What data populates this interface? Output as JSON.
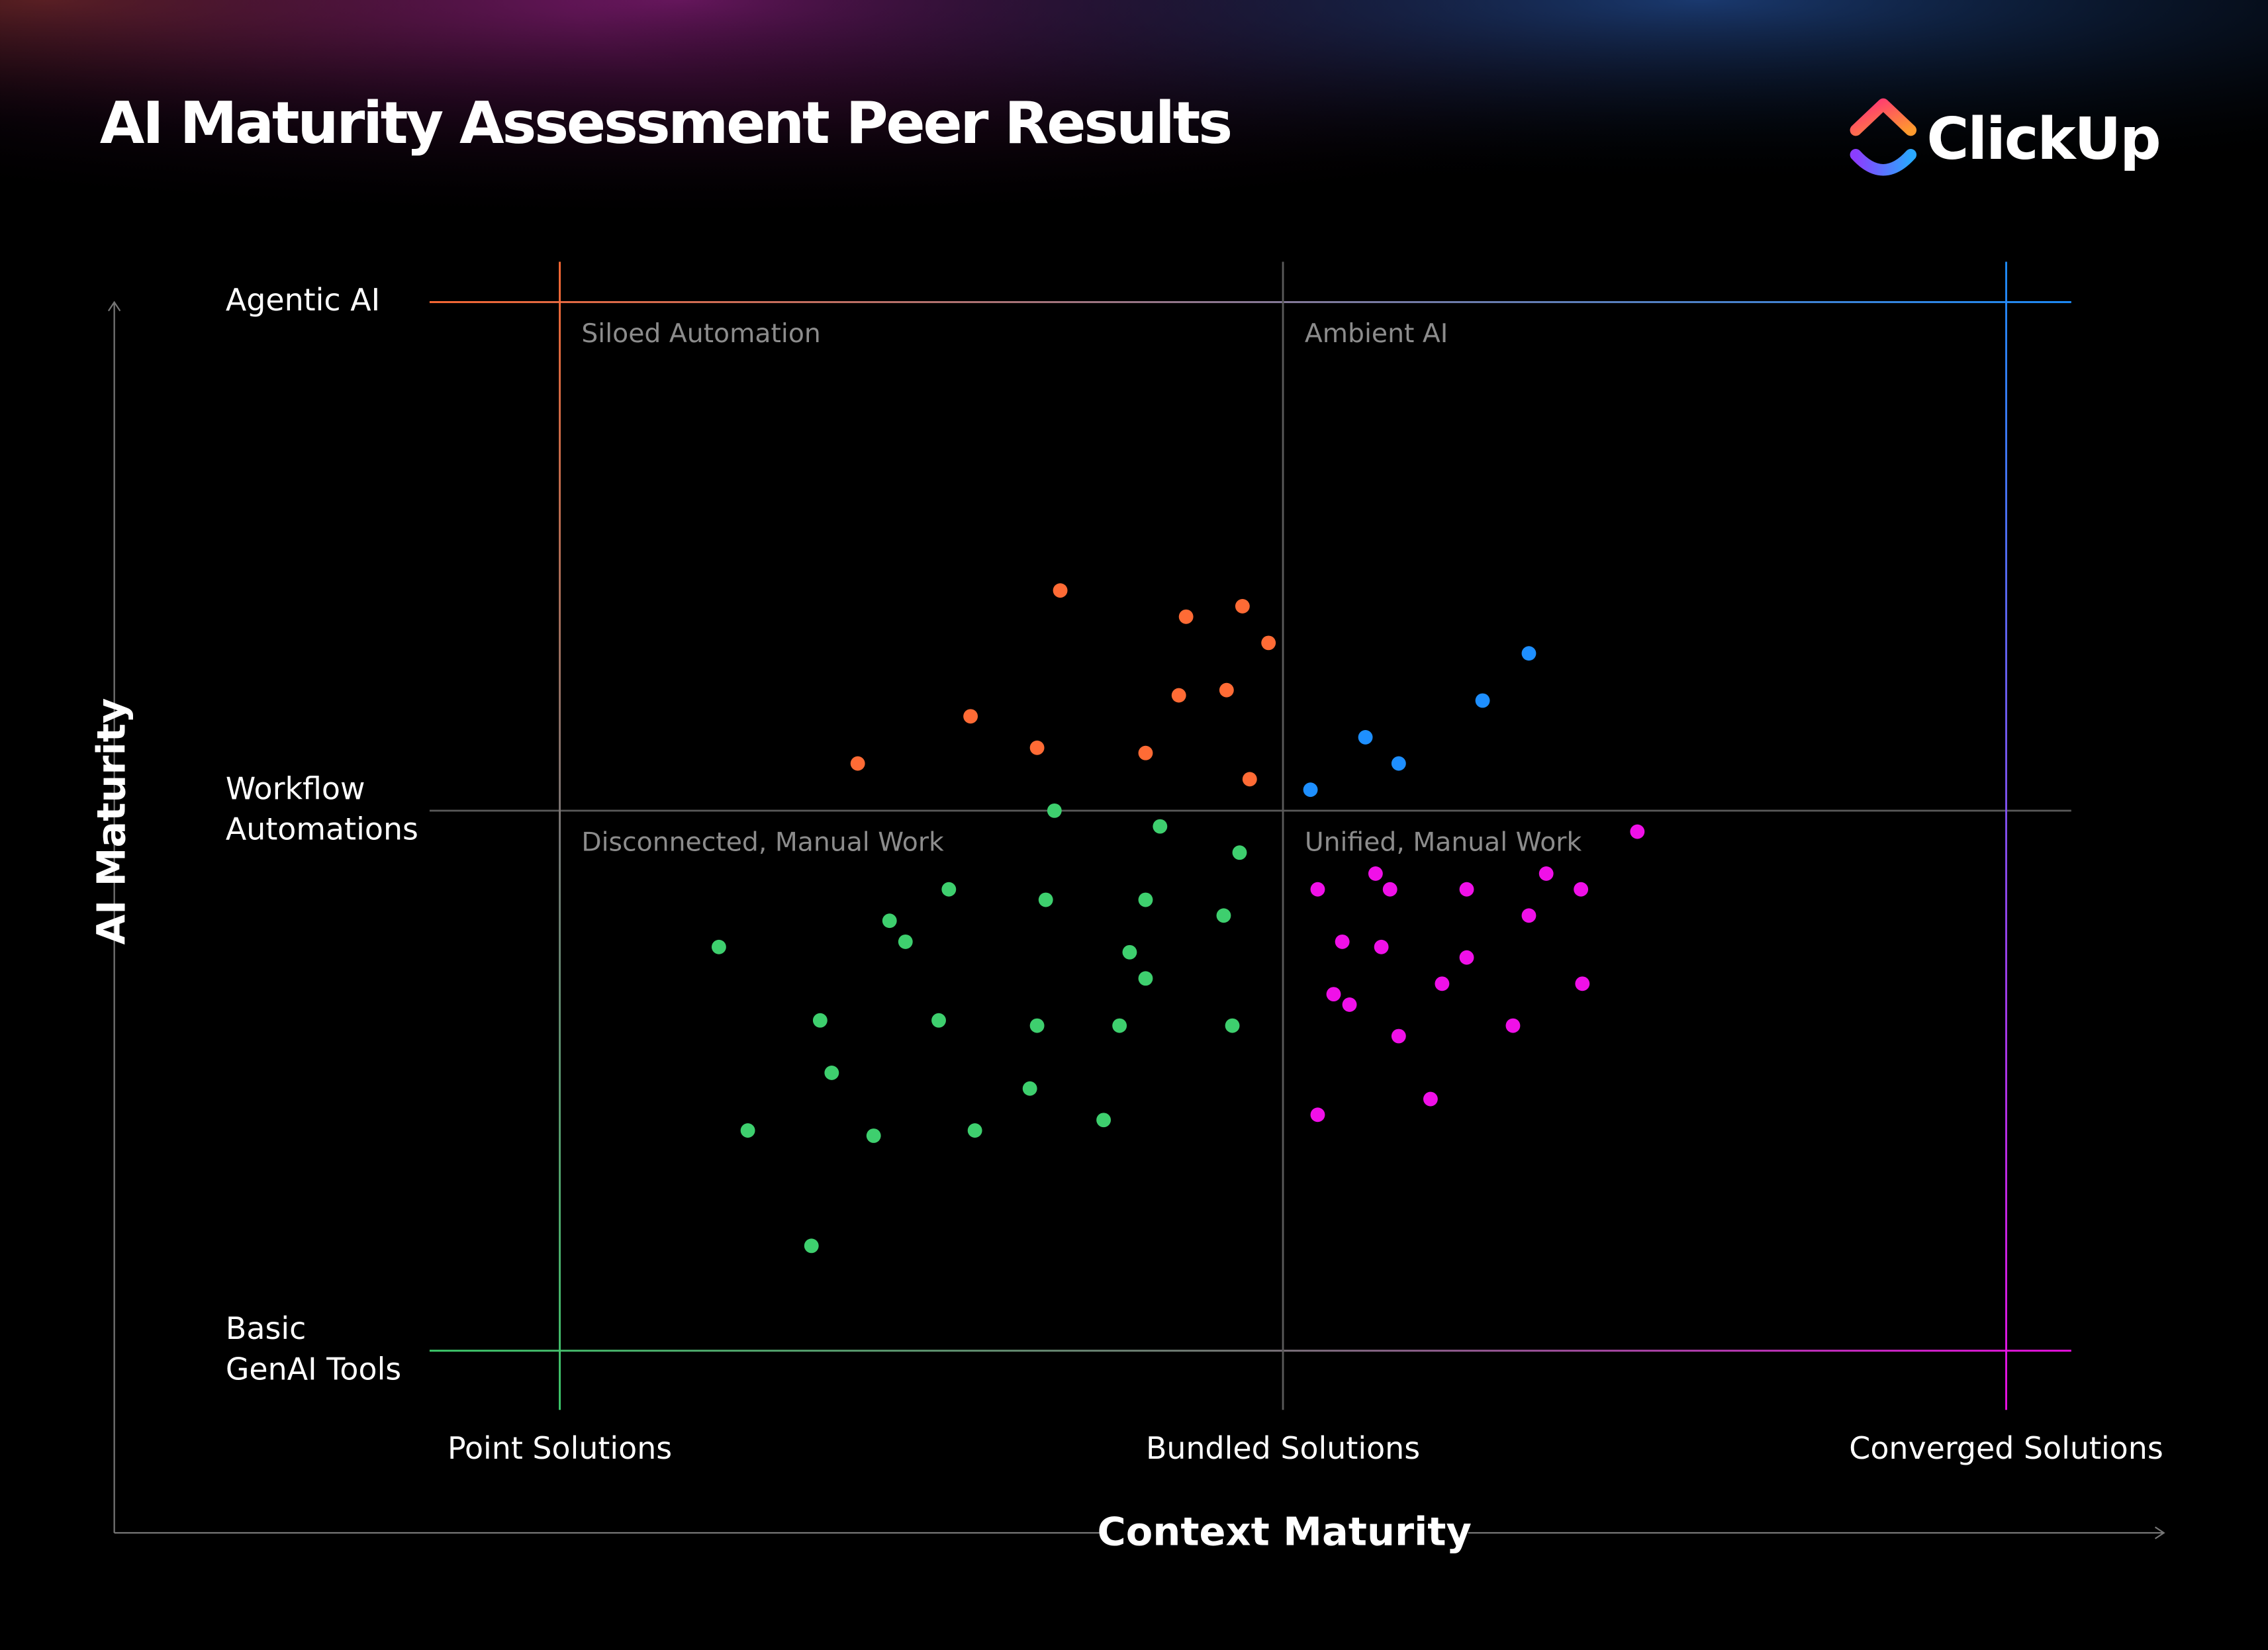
{
  "chart_data": {
    "type": "scatter",
    "title": "AI Maturity Assessment Peer Results",
    "logo": "ClickUp",
    "x_label": "Context Maturity",
    "y_label": "AI Maturity",
    "annotations": [
      "Siloed Automation",
      "Ambient AI",
      "Disconnected, Manual Work",
      "Unified, Manual Work"
    ],
    "xlim": [
      -0.18,
      2.09
    ],
    "ylim": [
      -0.113,
      2.077
    ],
    "xticks": [
      {
        "value": 0,
        "label": "Point Solutions"
      },
      {
        "value": 1,
        "label": "Bundled Solutions"
      },
      {
        "value": 2,
        "label": "Converged Solutions"
      }
    ],
    "yticks": [
      {
        "value": 0,
        "label": "Basic GenAI Tools"
      },
      {
        "value": 1.03,
        "label": "Workflow Automations"
      },
      {
        "value": 2,
        "label": "Agentic AI"
      }
    ],
    "grid": true,
    "series": [
      {
        "color": "#ff6b35",
        "x": [
          0.692,
          0.866,
          0.944,
          0.98,
          0.856,
          0.922,
          0.568,
          0.66,
          0.81,
          0.412,
          0.954
        ],
        "y": [
          1.45,
          1.4,
          1.42,
          1.35,
          1.25,
          1.26,
          1.21,
          1.15,
          1.14,
          1.12,
          1.09
        ]
      },
      {
        "color": "#1e8fff",
        "x": [
          1.34,
          1.276,
          1.114,
          1.16,
          1.038
        ],
        "y": [
          1.33,
          1.24,
          1.17,
          1.12,
          1.07
        ]
      },
      {
        "color": "#3ecf6e",
        "x": [
          0.684,
          0.83,
          0.94,
          0.538,
          0.672,
          0.81,
          0.918,
          0.456,
          0.478,
          0.22,
          0.788,
          0.81,
          0.36,
          0.524,
          0.66,
          0.774,
          0.93,
          0.376,
          0.65,
          0.26,
          0.434,
          0.574,
          0.752,
          0.348
        ],
        "y": [
          1.03,
          1.0,
          0.95,
          0.88,
          0.86,
          0.86,
          0.83,
          0.82,
          0.78,
          0.77,
          0.76,
          0.71,
          0.63,
          0.63,
          0.62,
          0.62,
          0.62,
          0.53,
          0.5,
          0.42,
          0.41,
          0.42,
          0.44,
          0.2
        ]
      },
      {
        "color": "#f010e8",
        "x": [
          1.49,
          1.128,
          1.364,
          1.048,
          1.148,
          1.254,
          1.412,
          1.34,
          1.082,
          1.136,
          1.254,
          1.22,
          1.414,
          1.07,
          1.092,
          1.16,
          1.318,
          1.048,
          1.204
        ],
        "y": [
          0.99,
          0.91,
          0.91,
          0.88,
          0.88,
          0.88,
          0.88,
          0.83,
          0.78,
          0.77,
          0.75,
          0.7,
          0.7,
          0.68,
          0.66,
          0.6,
          0.62,
          0.45,
          0.48
        ]
      }
    ]
  }
}
